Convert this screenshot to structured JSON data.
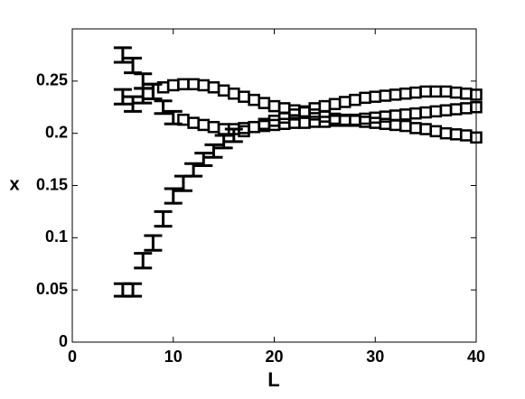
{
  "chart_data": {
    "type": "errorbar",
    "xlabel": "L",
    "ylabel": "x",
    "xlim": [
      0,
      40
    ],
    "xticks": [
      0,
      10,
      20,
      30,
      40
    ],
    "ylim": [
      0,
      0.3
    ],
    "yticks": [
      0,
      0.05,
      0.1,
      0.15,
      0.2,
      0.25
    ],
    "series": [
      {
        "color": "#000000",
        "x": [
          5,
          6,
          7,
          8,
          9,
          10,
          11,
          12,
          13,
          14,
          15,
          16,
          17,
          18,
          19,
          20,
          21,
          22,
          23,
          24,
          25,
          26,
          27,
          28,
          29,
          30,
          31,
          32,
          33,
          34,
          35,
          36,
          37,
          38,
          39,
          40
        ],
        "values": [
          0.05,
          0.05,
          0.078,
          0.095,
          0.118,
          0.14,
          0.152,
          0.165,
          0.175,
          0.183,
          0.192,
          0.198,
          0.202,
          0.206,
          0.209,
          0.212,
          0.215,
          0.218,
          0.221,
          0.224,
          0.226,
          0.228,
          0.23,
          0.232,
          0.234,
          0.235,
          0.236,
          0.237,
          0.238,
          0.239,
          0.24,
          0.24,
          0.24,
          0.239,
          0.238,
          0.237
        ],
        "errors": [
          0.006,
          0.006,
          0.007,
          0.007,
          0.007,
          0.007,
          0.007,
          0.006,
          0.006,
          0.006,
          0.006,
          0.006,
          null,
          null,
          null,
          null,
          null,
          null,
          null,
          null,
          null,
          null,
          null,
          null,
          null,
          null,
          null,
          null,
          null,
          null,
          null,
          null,
          null,
          null,
          null,
          null
        ]
      },
      {
        "color": "#000000",
        "x": [
          5,
          6,
          7,
          8,
          9,
          10,
          11,
          12,
          13,
          14,
          15,
          16,
          17,
          18,
          19,
          20,
          21,
          22,
          23,
          24,
          25,
          26,
          27,
          28,
          29,
          30,
          31,
          32,
          33,
          34,
          35,
          36,
          37,
          38,
          39,
          40
        ],
        "values": [
          0.275,
          0.265,
          0.25,
          0.24,
          0.225,
          0.215,
          0.213,
          0.21,
          0.208,
          0.206,
          0.204,
          0.204,
          0.205,
          0.206,
          0.207,
          0.208,
          0.209,
          0.21,
          0.21,
          0.211,
          0.211,
          0.212,
          0.212,
          0.213,
          0.214,
          0.215,
          0.216,
          0.217,
          0.218,
          0.219,
          0.22,
          0.221,
          0.222,
          0.223,
          0.224,
          0.225
        ],
        "errors": [
          0.007,
          0.007,
          0.007,
          0.007,
          0.006,
          0.006,
          null,
          null,
          null,
          null,
          null,
          null,
          null,
          null,
          null,
          null,
          null,
          null,
          null,
          null,
          null,
          null,
          null,
          null,
          null,
          null,
          null,
          null,
          null,
          null,
          null,
          null,
          null,
          null,
          null,
          null
        ]
      },
      {
        "color": "#000000",
        "x": [
          5,
          6,
          7,
          8,
          9,
          10,
          11,
          12,
          13,
          14,
          15,
          16,
          17,
          18,
          19,
          20,
          21,
          22,
          23,
          24,
          25,
          26,
          27,
          28,
          29,
          30,
          31,
          32,
          33,
          34,
          35,
          36,
          37,
          38,
          39,
          40
        ],
        "values": [
          0.235,
          0.228,
          0.236,
          0.24,
          0.244,
          0.246,
          0.247,
          0.247,
          0.246,
          0.244,
          0.241,
          0.238,
          0.235,
          0.232,
          0.229,
          0.226,
          0.224,
          0.222,
          0.22,
          0.218,
          0.216,
          0.214,
          0.213,
          0.212,
          0.211,
          0.21,
          0.209,
          0.208,
          0.207,
          0.205,
          0.204,
          0.202,
          0.2,
          0.199,
          0.198,
          0.196
        ],
        "errors": [
          0.007,
          0.007,
          0.007,
          0.007,
          null,
          null,
          null,
          null,
          null,
          null,
          null,
          null,
          null,
          null,
          null,
          null,
          null,
          null,
          null,
          null,
          null,
          null,
          null,
          null,
          null,
          null,
          null,
          null,
          null,
          null,
          null,
          null,
          null,
          null,
          null,
          null
        ]
      }
    ]
  }
}
